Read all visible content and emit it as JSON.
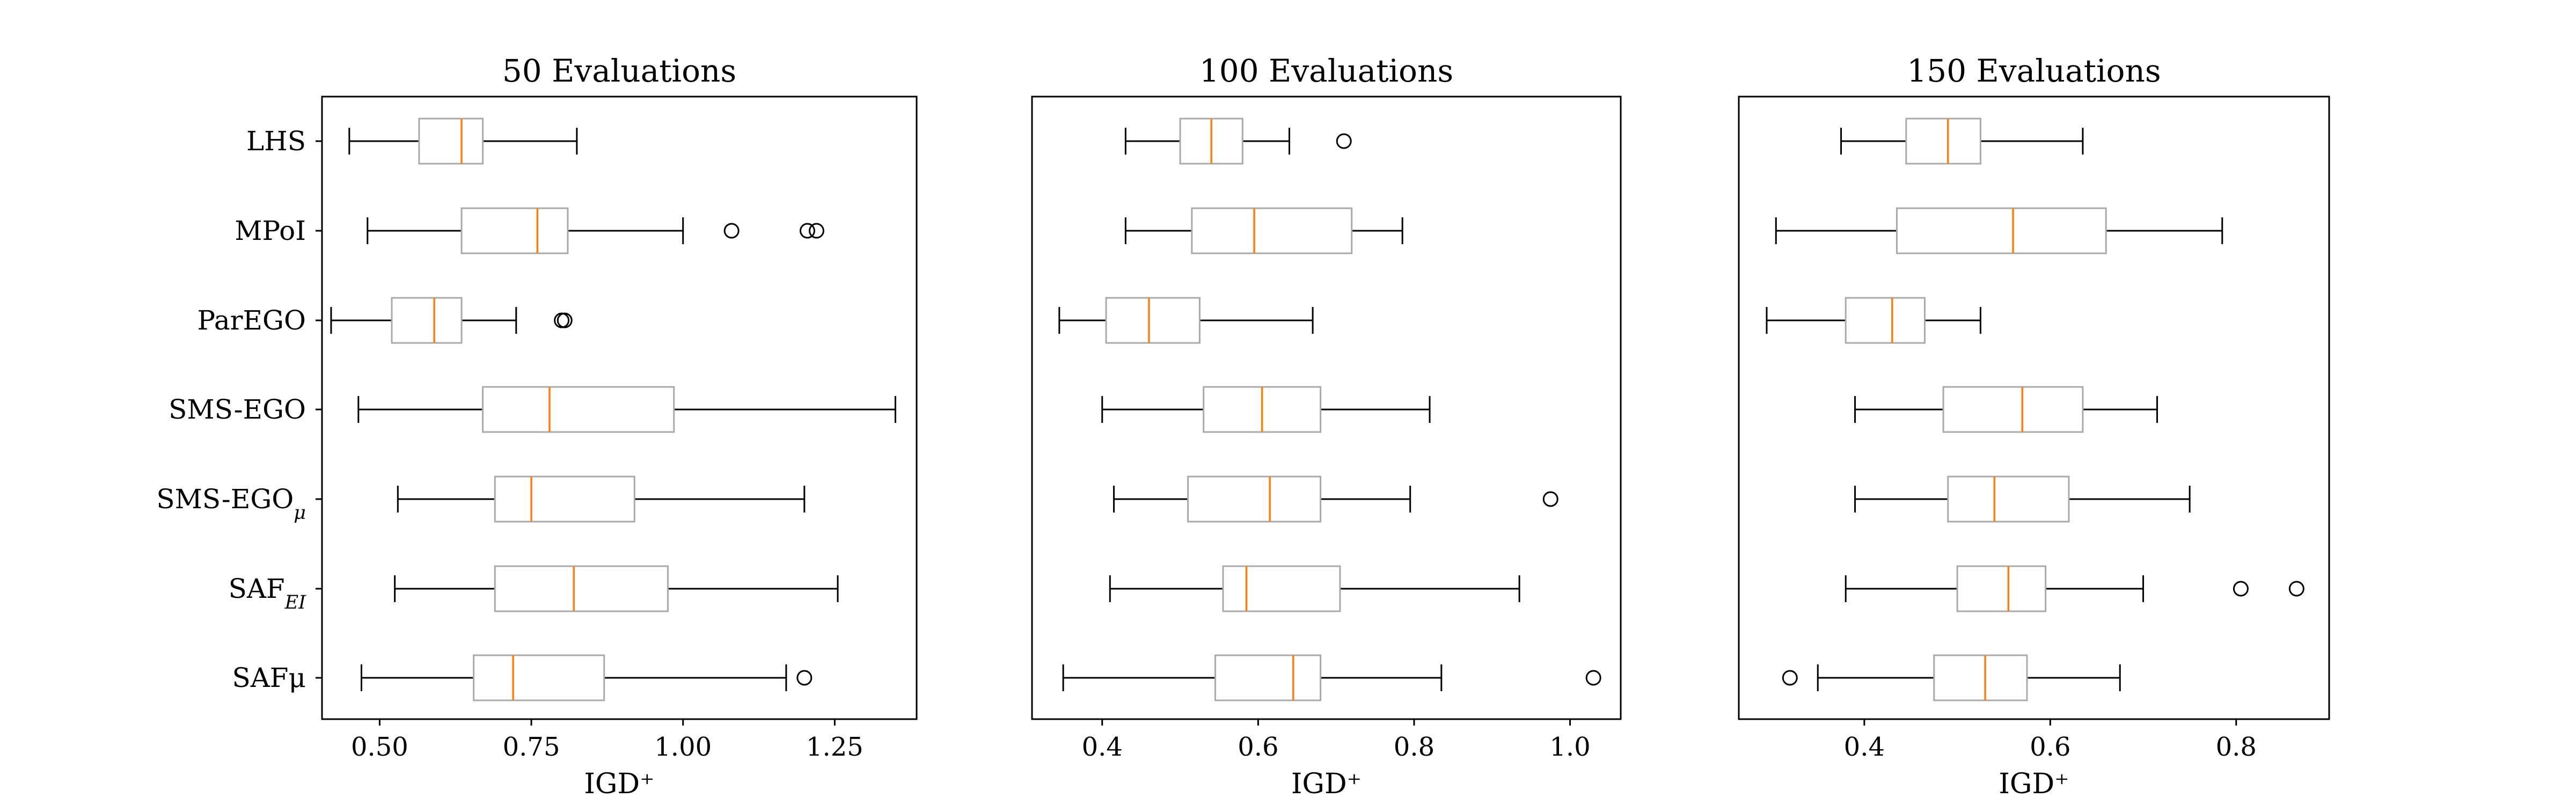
{
  "colors": {
    "box": "#aaaaaa",
    "median": "#ff7f0e",
    "whisker": "#000000",
    "frame": "#000000",
    "background": "#ffffff"
  },
  "labels": [
    "LHS",
    "MPoI",
    "ParEGO",
    "SMS-EGO",
    "SMS-EGOμ",
    "SAF_EI",
    "SAFμ"
  ],
  "label_parts": [
    {
      "main": "LHS",
      "sub": ""
    },
    {
      "main": "MPoI",
      "sub": ""
    },
    {
      "main": "ParEGO",
      "sub": ""
    },
    {
      "main": "SMS-EGO",
      "sub": ""
    },
    {
      "main": "SMS-EGO",
      "sub": "μ"
    },
    {
      "main": "SAF",
      "sub": "EI"
    },
    {
      "main": "SAFμ",
      "sub": ""
    }
  ],
  "chart_data": [
    {
      "type": "boxplot",
      "title": "50 Evaluations",
      "xlabel": "IGD⁺",
      "xlim": [
        0.405,
        1.385
      ],
      "xticks": [
        0.5,
        0.75,
        1.0,
        1.25
      ],
      "xtick_labels": [
        "0.50",
        "0.75",
        "1.00",
        "1.25"
      ],
      "series": [
        {
          "name": "LHS",
          "whislo": 0.45,
          "q1": 0.565,
          "med": 0.635,
          "q3": 0.67,
          "whishi": 0.825,
          "fliers": []
        },
        {
          "name": "MPoI",
          "whislo": 0.48,
          "q1": 0.635,
          "med": 0.76,
          "q3": 0.81,
          "whishi": 1.0,
          "fliers": [
            1.08,
            1.205,
            1.22
          ]
        },
        {
          "name": "ParEGO",
          "whislo": 0.42,
          "q1": 0.52,
          "med": 0.59,
          "q3": 0.635,
          "whishi": 0.725,
          "fliers": [
            0.8,
            0.805
          ]
        },
        {
          "name": "SMS-EGO",
          "whislo": 0.465,
          "q1": 0.67,
          "med": 0.78,
          "q3": 0.985,
          "whishi": 1.35,
          "fliers": []
        },
        {
          "name": "SMS-EGOμ",
          "whislo": 0.53,
          "q1": 0.69,
          "med": 0.75,
          "q3": 0.92,
          "whishi": 1.2,
          "fliers": []
        },
        {
          "name": "SAF_EI",
          "whislo": 0.525,
          "q1": 0.69,
          "med": 0.82,
          "q3": 0.975,
          "whishi": 1.255,
          "fliers": []
        },
        {
          "name": "SAFμ",
          "whislo": 0.47,
          "q1": 0.655,
          "med": 0.72,
          "q3": 0.87,
          "whishi": 1.17,
          "fliers": [
            1.2
          ]
        }
      ]
    },
    {
      "type": "boxplot",
      "title": "100 Evaluations",
      "xlabel": "IGD⁺",
      "xlim": [
        0.31,
        1.065
      ],
      "xticks": [
        0.4,
        0.6,
        0.8,
        1.0
      ],
      "xtick_labels": [
        "0.4",
        "0.6",
        "0.8",
        "1.0"
      ],
      "series": [
        {
          "name": "LHS",
          "whislo": 0.43,
          "q1": 0.5,
          "med": 0.54,
          "q3": 0.58,
          "whishi": 0.64,
          "fliers": [
            0.71
          ]
        },
        {
          "name": "MPoI",
          "whislo": 0.43,
          "q1": 0.515,
          "med": 0.595,
          "q3": 0.72,
          "whishi": 0.785,
          "fliers": []
        },
        {
          "name": "ParEGO",
          "whislo": 0.345,
          "q1": 0.405,
          "med": 0.46,
          "q3": 0.525,
          "whishi": 0.67,
          "fliers": []
        },
        {
          "name": "SMS-EGO",
          "whislo": 0.4,
          "q1": 0.53,
          "med": 0.605,
          "q3": 0.68,
          "whishi": 0.82,
          "fliers": []
        },
        {
          "name": "SMS-EGOμ",
          "whislo": 0.415,
          "q1": 0.51,
          "med": 0.615,
          "q3": 0.68,
          "whishi": 0.795,
          "fliers": [
            0.975
          ]
        },
        {
          "name": "SAF_EI",
          "whislo": 0.41,
          "q1": 0.555,
          "med": 0.585,
          "q3": 0.705,
          "whishi": 0.935,
          "fliers": []
        },
        {
          "name": "SAFμ",
          "whislo": 0.35,
          "q1": 0.545,
          "med": 0.645,
          "q3": 0.68,
          "whishi": 0.835,
          "fliers": [
            1.03
          ]
        }
      ]
    },
    {
      "type": "boxplot",
      "title": "150 Evaluations",
      "xlabel": "IGD⁺",
      "xlim": [
        0.265,
        0.9
      ],
      "xticks": [
        0.4,
        0.6,
        0.8
      ],
      "xtick_labels": [
        "0.4",
        "0.6",
        "0.8"
      ],
      "series": [
        {
          "name": "LHS",
          "whislo": 0.375,
          "q1": 0.445,
          "med": 0.49,
          "q3": 0.525,
          "whishi": 0.635,
          "fliers": []
        },
        {
          "name": "MPoI",
          "whislo": 0.305,
          "q1": 0.435,
          "med": 0.56,
          "q3": 0.66,
          "whishi": 0.785,
          "fliers": []
        },
        {
          "name": "ParEGO",
          "whislo": 0.295,
          "q1": 0.38,
          "med": 0.43,
          "q3": 0.465,
          "whishi": 0.525,
          "fliers": []
        },
        {
          "name": "SMS-EGO",
          "whislo": 0.39,
          "q1": 0.485,
          "med": 0.57,
          "q3": 0.635,
          "whishi": 0.715,
          "fliers": []
        },
        {
          "name": "SMS-EGOμ",
          "whislo": 0.39,
          "q1": 0.49,
          "med": 0.54,
          "q3": 0.62,
          "whishi": 0.75,
          "fliers": []
        },
        {
          "name": "SAF_EI",
          "whislo": 0.38,
          "q1": 0.5,
          "med": 0.555,
          "q3": 0.595,
          "whishi": 0.7,
          "fliers": [
            0.805,
            0.865
          ]
        },
        {
          "name": "SAFμ",
          "whislo": 0.35,
          "q1": 0.475,
          "med": 0.53,
          "q3": 0.575,
          "whishi": 0.675,
          "fliers": [
            0.32
          ]
        }
      ]
    }
  ]
}
